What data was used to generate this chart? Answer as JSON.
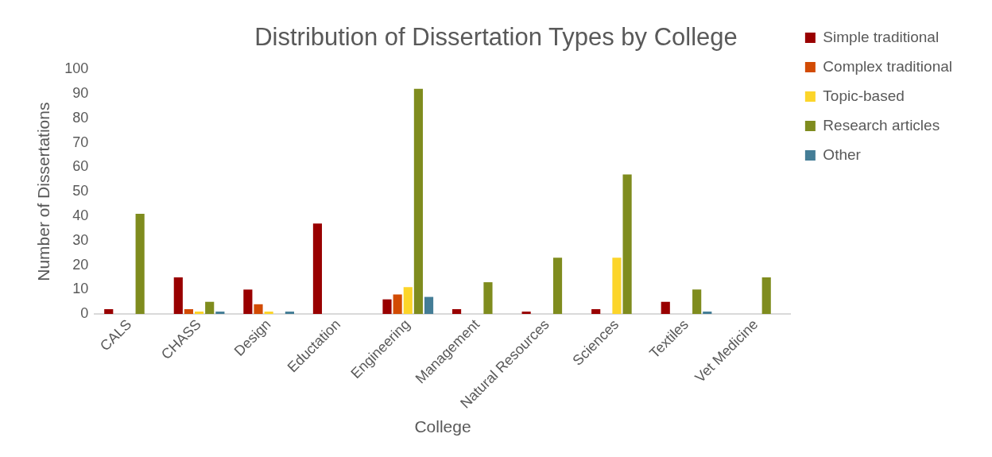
{
  "chart_data": {
    "type": "bar",
    "title": "Distribution of Dissertation Types by College",
    "xlabel": "College",
    "ylabel": "Number of Dissertations",
    "categories": [
      "CALS",
      "CHASS",
      "Design",
      "Eductation",
      "Engineering",
      "Management",
      "Natural Resources",
      "Sciences",
      "Textiles",
      "Vet Medicine"
    ],
    "series": [
      {
        "name": "Simple traditional",
        "color": "#990000",
        "values": [
          2,
          15,
          10,
          37,
          6,
          2,
          1,
          2,
          5,
          0
        ]
      },
      {
        "name": "Complex traditional",
        "color": "#d24b04",
        "values": [
          0,
          2,
          4,
          0,
          8,
          0,
          0,
          0,
          0,
          0
        ]
      },
      {
        "name": "Topic-based",
        "color": "#fcd52a",
        "values": [
          0,
          1,
          1,
          0,
          11,
          0,
          0,
          23,
          0,
          0
        ]
      },
      {
        "name": "Research articles",
        "color": "#7f8c1e",
        "values": [
          41,
          5,
          0,
          0,
          92,
          13,
          23,
          57,
          10,
          15
        ]
      },
      {
        "name": "Other",
        "color": "#447d96",
        "values": [
          0,
          1,
          1,
          0,
          7,
          0,
          0,
          0,
          1,
          0
        ]
      }
    ],
    "ylim": [
      0,
      100
    ],
    "yticks": [
      0,
      10,
      20,
      30,
      40,
      50,
      60,
      70,
      80,
      90,
      100
    ],
    "grid": false,
    "legend": "right"
  }
}
